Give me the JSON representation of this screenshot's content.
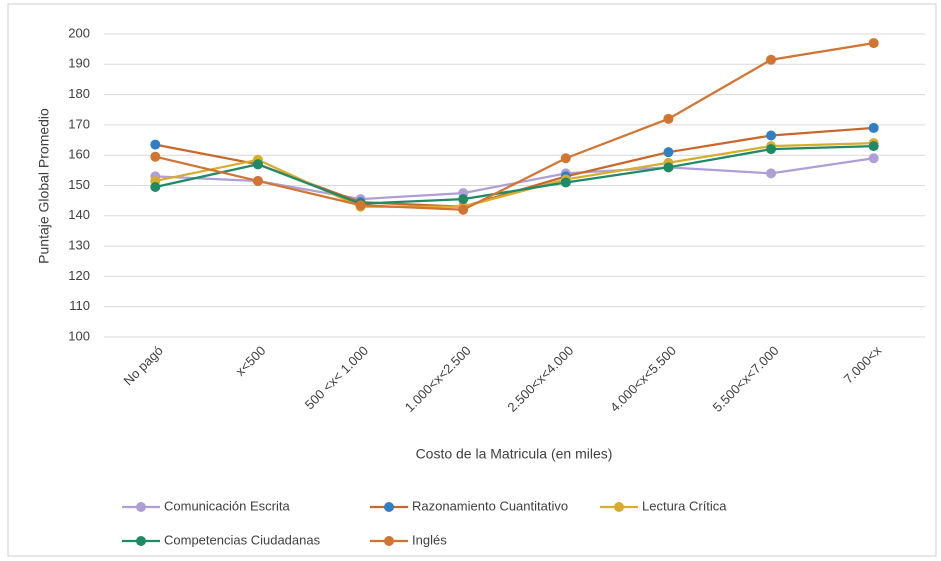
{
  "chart_data": {
    "type": "line",
    "xlabel": "Costo de la Matricula (en miles)",
    "ylabel": "Puntaje Global Promedio",
    "categories": [
      "No pagó",
      "x<500",
      "500 <x< 1.000",
      "1.000<x<2.500",
      "2.500<x<4.000",
      "4.000<x<5.500",
      "5.500<x<7.000",
      "7.000<x"
    ],
    "series": [
      {
        "name": "Comunicación Escrita",
        "color": "#b09fd4",
        "values": [
          153,
          151.5,
          145.5,
          147.5,
          154,
          156,
          154,
          159
        ]
      },
      {
        "name": "Razonamiento Cuantitativo",
        "color": "#c8682a",
        "marker_color": "#2e7fc4",
        "values": [
          163.5,
          157,
          144.5,
          143,
          153,
          161,
          166.5,
          169
        ]
      },
      {
        "name": "Lectura Crítica",
        "color": "#d8ac2c",
        "values": [
          151.5,
          158.5,
          143,
          143,
          152,
          157.5,
          163,
          164
        ]
      },
      {
        "name": "Competencias Ciudadanas",
        "color": "#1e8a66",
        "values": [
          149.5,
          157,
          144,
          145.5,
          151,
          156,
          162,
          163
        ]
      },
      {
        "name": "Inglés",
        "color": "#d27432",
        "values": [
          159.5,
          151.5,
          143.5,
          142,
          159,
          172,
          191.5,
          197
        ]
      }
    ],
    "ylim": [
      100,
      200
    ],
    "yticks": [
      100,
      110,
      120,
      130,
      140,
      150,
      160,
      170,
      180,
      190,
      200
    ],
    "grid": true,
    "legend": "bottom"
  }
}
